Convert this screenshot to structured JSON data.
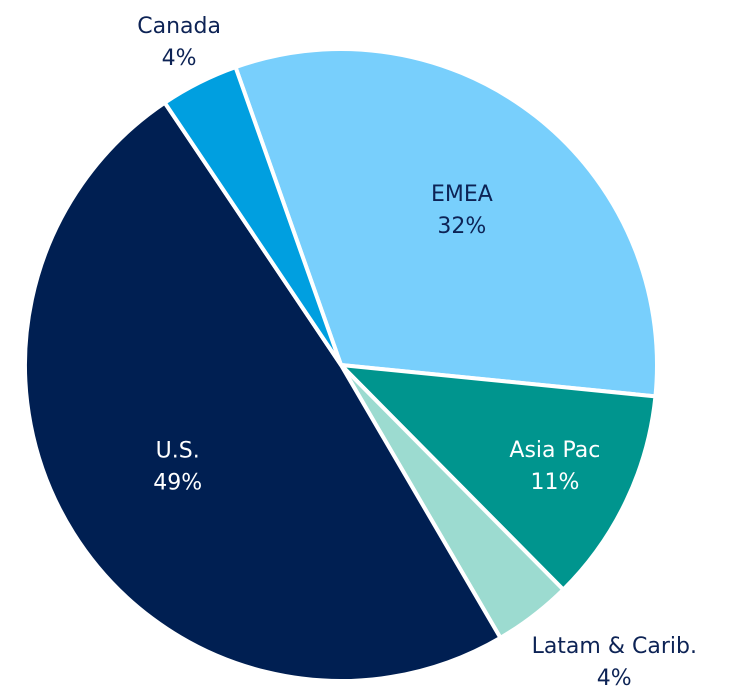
{
  "chart_data": {
    "type": "pie",
    "categories": [
      "EMEA",
      "Asia Pac",
      "Latam & Carib.",
      "U.S.",
      "Canada"
    ],
    "values": [
      32,
      11,
      4,
      49,
      4
    ],
    "value_labels": [
      "32%",
      "11%",
      "4%",
      "49%",
      "4%"
    ],
    "colors": [
      "#78cffc",
      "#00958e",
      "#9cdbd0",
      "#001f52",
      "#009fe0"
    ]
  }
}
